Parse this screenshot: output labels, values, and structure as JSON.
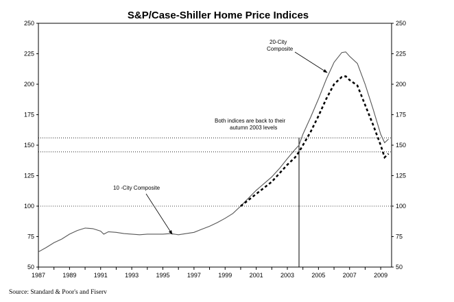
{
  "chart_data": {
    "type": "line",
    "title": "S&P/Case-Shiller Home Price Indices",
    "xlabel": "",
    "ylabel": "",
    "xlim": [
      1987,
      2009.7
    ],
    "ylim": [
      50,
      250
    ],
    "y_ticks": [
      50,
      75,
      100,
      125,
      150,
      175,
      200,
      225,
      250
    ],
    "x_ticks": [
      "1987",
      "1989",
      "1991",
      "1993",
      "1995",
      "1997",
      "1999",
      "2001",
      "2003",
      "2005",
      "2007",
      "2009"
    ],
    "reference_lines": [
      100,
      144.5,
      156
    ],
    "marker_year": 2003.75,
    "series": [
      {
        "name": "10 -City Composite",
        "style": "solid",
        "color": "#555555",
        "points": [
          [
            1987.0,
            62.5
          ],
          [
            1987.5,
            66
          ],
          [
            1988.0,
            70
          ],
          [
            1988.5,
            73
          ],
          [
            1989.0,
            77
          ],
          [
            1989.5,
            80
          ],
          [
            1990.0,
            82
          ],
          [
            1990.5,
            81.5
          ],
          [
            1991.0,
            79.5
          ],
          [
            1991.2,
            77
          ],
          [
            1991.5,
            79
          ],
          [
            1992.0,
            78.5
          ],
          [
            1992.5,
            77.5
          ],
          [
            1993.0,
            77
          ],
          [
            1993.5,
            76.5
          ],
          [
            1994.0,
            77
          ],
          [
            1994.5,
            77
          ],
          [
            1995.0,
            77
          ],
          [
            1995.5,
            77.5
          ],
          [
            1996.0,
            76.5
          ],
          [
            1996.5,
            77.5
          ],
          [
            1997.0,
            78.5
          ],
          [
            1997.5,
            81
          ],
          [
            1998.0,
            83.5
          ],
          [
            1998.5,
            86.5
          ],
          [
            1999.0,
            90
          ],
          [
            1999.5,
            94
          ],
          [
            2000.0,
            100
          ],
          [
            2000.5,
            106.5
          ],
          [
            2001.0,
            113
          ],
          [
            2001.5,
            118.5
          ],
          [
            2002.0,
            124
          ],
          [
            2002.5,
            131
          ],
          [
            2003.0,
            139
          ],
          [
            2003.5,
            146.5
          ],
          [
            2003.75,
            150
          ],
          [
            2004.0,
            159
          ],
          [
            2004.5,
            173
          ],
          [
            2005.0,
            188
          ],
          [
            2005.5,
            204
          ],
          [
            2006.0,
            218
          ],
          [
            2006.5,
            226
          ],
          [
            2006.75,
            226.5
          ],
          [
            2007.0,
            223
          ],
          [
            2007.5,
            217
          ],
          [
            2008.0,
            200
          ],
          [
            2008.5,
            180
          ],
          [
            2009.0,
            159
          ],
          [
            2009.25,
            152
          ],
          [
            2009.5,
            155
          ]
        ]
      },
      {
        "name": "20-City Composite",
        "style": "dashed",
        "color": "#000000",
        "points": [
          [
            2000.0,
            100
          ],
          [
            2000.5,
            105
          ],
          [
            2001.0,
            110
          ],
          [
            2001.5,
            115
          ],
          [
            2002.0,
            120
          ],
          [
            2002.5,
            127
          ],
          [
            2003.0,
            134
          ],
          [
            2003.5,
            140
          ],
          [
            2003.75,
            144.5
          ],
          [
            2004.0,
            150
          ],
          [
            2004.5,
            161
          ],
          [
            2005.0,
            174
          ],
          [
            2005.5,
            188
          ],
          [
            2006.0,
            200
          ],
          [
            2006.5,
            206
          ],
          [
            2006.75,
            206.5
          ],
          [
            2007.0,
            203.5
          ],
          [
            2007.5,
            199
          ],
          [
            2008.0,
            183
          ],
          [
            2008.5,
            167
          ],
          [
            2009.0,
            150
          ],
          [
            2009.25,
            140
          ],
          [
            2009.5,
            143
          ]
        ]
      }
    ],
    "annotations": {
      "twenty_city_line1": "20-City",
      "twenty_city_line2": "Composite",
      "ten_city": "10 -City Composite",
      "both_line1": "Both indices are back to their",
      "both_line2": "autumn 2003 levels"
    },
    "source": "Source: Standard & Poor's and Fiserv"
  }
}
